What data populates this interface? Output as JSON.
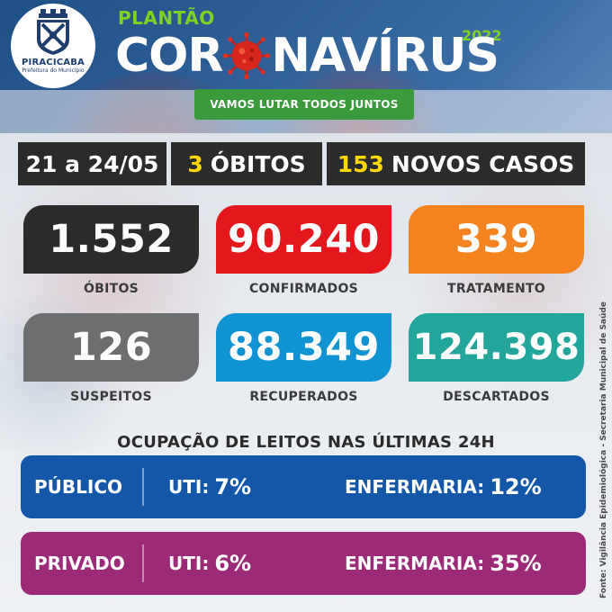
{
  "header": {
    "logo_city": "PIRACICABA",
    "logo_sub": "Prefeitura do Município",
    "kicker": "PLANTÃO",
    "title_before": "COR",
    "title_after": "NAVÍRUS",
    "year": "2022",
    "slogan": "VAMOS LUTAR TODOS JUNTOS"
  },
  "summary_bar": {
    "period": "21 a 24/05",
    "deaths_value": "3",
    "deaths_label": "ÓBITOS",
    "cases_value": "153",
    "cases_label": "NOVOS CASOS"
  },
  "cards": [
    {
      "value": "1.552",
      "label": "ÓBITOS",
      "color": "#2b2b2b"
    },
    {
      "value": "90.240",
      "label": "CONFIRMADOS",
      "color": "#e3171c"
    },
    {
      "value": "339",
      "label": "TRATAMENTO",
      "color": "#f4821f"
    },
    {
      "value": "126",
      "label": "SUSPEITOS",
      "color": "#6d6e70"
    },
    {
      "value": "88.349",
      "label": "RECUPERADOS",
      "color": "#0f93d3"
    },
    {
      "value": "124.398",
      "label": "DESCARTADOS",
      "color": "#22a59a"
    }
  ],
  "beds": {
    "title": "OCUPAÇÃO DE LEITOS NAS ÚLTIMAS 24H",
    "rows": [
      {
        "name": "PÚBLICO",
        "uti_label": "UTI:",
        "uti_value": "7%",
        "enf_label": "ENFERMARIA:",
        "enf_value": "12%",
        "color": "#1457a8"
      },
      {
        "name": "PRIVADO",
        "uti_label": "UTI:",
        "uti_value": "6%",
        "enf_label": "ENFERMARIA:",
        "enf_value": "35%",
        "color": "#9c2a78"
      }
    ]
  },
  "source": "Fonte: Vigilância Epidemiológica - Secretaria Municipal de Saúde",
  "colors": {
    "accent_green": "#7ed321",
    "highlight_yellow": "#ffd800",
    "virus_red": "#d7261e"
  }
}
